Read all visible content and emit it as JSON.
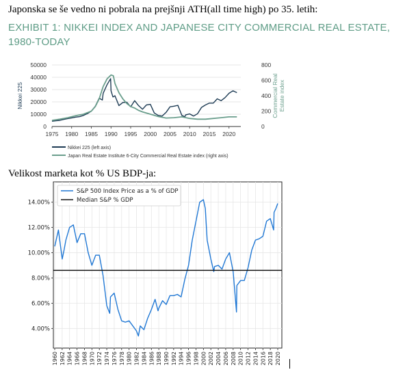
{
  "headings": {
    "line1": "Japonska se še vedno ni pobrala na prejšnji ATH(all time high) po 35. letih:",
    "exhibit_title": "EXHIBIT 1: NIKKEI INDEX AND JAPANESE CITY COMMERCIAL REAL ESTATE, 1980-TODAY",
    "line2": "Velikost marketa kot % US BDP-ja:"
  },
  "colors": {
    "nikkei": "#1c3a53",
    "real_estate": "#6a9e8c",
    "sp": "#1f77d4",
    "median": "#111111",
    "exhibit_text": "#5e9c86"
  },
  "chart_data": [
    {
      "type": "line",
      "xlabel": "",
      "ylabel": "Nikkei 225",
      "y2label": "Commercial Real Estate index",
      "xlim": [
        1975,
        2023
      ],
      "ylim": [
        0,
        50000
      ],
      "y2lim": [
        0,
        800
      ],
      "xticks": [
        "1975",
        "1980",
        "1985",
        "1990",
        "1995",
        "2000",
        "2005",
        "2010",
        "2015",
        "2020"
      ],
      "yticks": [
        "0",
        "10000",
        "20000",
        "30000",
        "40000",
        "50000"
      ],
      "y2ticks": [
        "0",
        "200",
        "400",
        "600",
        "800"
      ],
      "grid": true,
      "legend_position": "bottom-left",
      "series": [
        {
          "name": "Nikkei 225 (left axis)",
          "axis": "left",
          "x": [
            1975,
            1976,
            1977,
            1978,
            1979,
            1980,
            1981,
            1982,
            1983,
            1984,
            1985,
            1986,
            1987,
            1987.8,
            1988,
            1989,
            1989.9,
            1990,
            1990.5,
            1991,
            1992,
            1993,
            1994,
            1995,
            1996,
            1997,
            1998,
            1999,
            2000,
            2001,
            2002,
            2003,
            2004,
            2005,
            2006,
            2007,
            2008,
            2008.8,
            2009,
            2010,
            2011,
            2012,
            2013,
            2014,
            2015,
            2016,
            2017,
            2018,
            2019,
            2020,
            2021,
            2022
          ],
          "values": [
            4300,
            4700,
            5000,
            5800,
            6400,
            7000,
            7600,
            8000,
            9000,
            10500,
            12500,
            16500,
            23000,
            21500,
            27000,
            34000,
            38900,
            29000,
            24000,
            25000,
            17000,
            19500,
            19700,
            16000,
            21000,
            17000,
            14000,
            17500,
            18000,
            11000,
            9000,
            8500,
            11500,
            16000,
            16500,
            17200,
            9000,
            8000,
            9500,
            10200,
            8500,
            10400,
            15500,
            17500,
            19000,
            19000,
            22500,
            21000,
            23500,
            27000,
            29000,
            27500
          ]
        },
        {
          "name": "Japan Real Estate Institute 6-City Commercial Real Estate index (right axis)",
          "axis": "right",
          "x": [
            1975,
            1977,
            1979,
            1981,
            1983,
            1985,
            1986,
            1987,
            1988,
            1989,
            1990,
            1990.6,
            1991,
            1992,
            1993,
            1994,
            1995,
            1996,
            1997,
            1998,
            2000,
            2002,
            2004,
            2006,
            2008,
            2010,
            2012,
            2014,
            2016,
            2018,
            2020,
            2022
          ],
          "values": [
            80,
            95,
            115,
            140,
            160,
            200,
            260,
            360,
            520,
            620,
            670,
            660,
            560,
            440,
            360,
            300,
            260,
            240,
            210,
            190,
            160,
            130,
            110,
            115,
            125,
            105,
            95,
            95,
            105,
            115,
            125,
            125
          ]
        }
      ]
    },
    {
      "type": "line",
      "title": "",
      "xlabel": "",
      "ylabel": "",
      "xlim": [
        1960,
        2020
      ],
      "ylim": [
        2.5,
        15.5
      ],
      "xticks": [
        "1960",
        "1962",
        "1964",
        "1966",
        "1968",
        "1970",
        "1972",
        "1974",
        "1976",
        "1978",
        "1980",
        "1982",
        "1984",
        "1986",
        "1988",
        "1990",
        "1992",
        "1994",
        "1996",
        "1998",
        "2000",
        "2002",
        "2004",
        "2006",
        "2008",
        "2010",
        "2012",
        "2014",
        "2016",
        "2018",
        "2020"
      ],
      "yticks": [
        "4.00%",
        "6.00%",
        "8.00%",
        "10.00%",
        "12.00%",
        "14.00%"
      ],
      "grid": true,
      "legend_position": "top-left",
      "series": [
        {
          "name": "S&P 500 Index Price as a % of GDP",
          "x": [
            1960,
            1961,
            1962,
            1962.5,
            1963,
            1964,
            1965,
            1966,
            1967,
            1968,
            1969,
            1970,
            1971,
            1972,
            1973,
            1974,
            1974.8,
            1975,
            1976,
            1977,
            1978,
            1979,
            1980,
            1981,
            1982,
            1982.5,
            1983,
            1984,
            1985,
            1986,
            1987,
            1987.8,
            1988,
            1989,
            1990,
            1991,
            1992,
            1993,
            1994,
            1995,
            1996,
            1997,
            1998,
            1999,
            2000,
            2000.5,
            2001,
            2002,
            2002.8,
            2003,
            2004,
            2005,
            2006,
            2007,
            2008,
            2008.9,
            2009,
            2010,
            2011,
            2012,
            2013,
            2014,
            2015,
            2016,
            2017,
            2018,
            2018.9,
            2019,
            2019.5,
            2020
          ],
          "values": [
            10.5,
            11.8,
            9.5,
            10.2,
            11.0,
            12.0,
            12.2,
            10.8,
            11.5,
            11.5,
            10.0,
            9.0,
            9.8,
            9.8,
            8.2,
            5.8,
            5.2,
            6.5,
            6.8,
            5.5,
            4.6,
            4.5,
            4.6,
            4.2,
            3.8,
            3.4,
            4.2,
            3.9,
            4.8,
            5.5,
            6.3,
            5.4,
            5.6,
            6.2,
            5.9,
            6.6,
            6.6,
            6.7,
            6.5,
            7.9,
            9.0,
            11.0,
            12.5,
            14.0,
            14.2,
            13.5,
            11.0,
            9.5,
            8.5,
            8.9,
            9.0,
            8.7,
            9.5,
            10.0,
            8.5,
            5.3,
            7.4,
            7.8,
            7.8,
            8.8,
            10.2,
            11.0,
            11.1,
            11.3,
            12.5,
            12.7,
            11.8,
            13.2,
            13.5,
            13.9
          ]
        },
        {
          "name": "Median S&P % GDP",
          "x": [
            1960,
            2020
          ],
          "values": [
            8.6,
            8.6
          ]
        }
      ]
    }
  ]
}
